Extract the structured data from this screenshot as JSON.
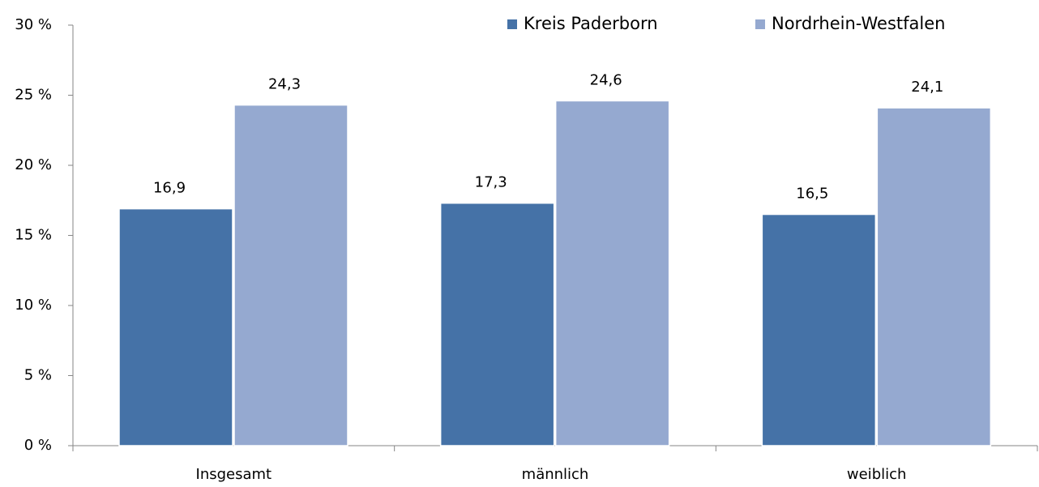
{
  "chart_data": {
    "type": "bar",
    "categories": [
      "Insgesamt",
      "männlich",
      "weiblich"
    ],
    "series": [
      {
        "name": "Kreis Paderborn",
        "color": "#4572a7",
        "values": [
          16.9,
          17.3,
          16.5
        ],
        "value_labels": [
          "16,9",
          "17,3",
          "16,5"
        ]
      },
      {
        "name": "Nordrhein-Westfalen",
        "color": "#95a9d0",
        "values": [
          24.3,
          24.6,
          24.1
        ],
        "value_labels": [
          "24,3",
          "24,6",
          "24,1"
        ]
      }
    ],
    "ylim": [
      0,
      30
    ],
    "yticks": [
      {
        "value": 0,
        "label": "0 %"
      },
      {
        "value": 5,
        "label": "5 %"
      },
      {
        "value": 10,
        "label": "10 %"
      },
      {
        "value": 15,
        "label": "15 %"
      },
      {
        "value": 20,
        "label": "20 %"
      },
      {
        "value": 25,
        "label": "25 %"
      },
      {
        "value": 30,
        "label": "30 %"
      }
    ],
    "grid": false,
    "legend": "top"
  }
}
